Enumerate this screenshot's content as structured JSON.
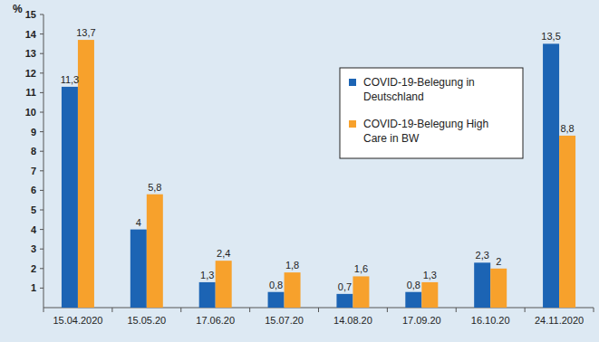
{
  "chart_data": {
    "type": "bar",
    "y_label": "%",
    "categories": [
      "15.04.2020",
      "15.05.20",
      "17.06.20",
      "15.07.20",
      "14.08.20",
      "17.09.20",
      "16.10.20",
      "24.11.2020"
    ],
    "series": [
      {
        "name": "COVID-19-Belegung in Deutschland",
        "color": "#1c64b4",
        "values": [
          11.3,
          4,
          1.3,
          0.8,
          0.7,
          0.8,
          2.3,
          13.5
        ],
        "value_labels": [
          "11,3",
          "4",
          "1,3",
          "0,8",
          "0,7",
          "0,8",
          "2,3",
          "13,5"
        ]
      },
      {
        "name": "COVID-19-Belegung High Care in BW",
        "color": "#f7a12c",
        "values": [
          13.7,
          5.8,
          2.4,
          1.8,
          1.6,
          1.3,
          2,
          8.8
        ],
        "value_labels": [
          "13,7",
          "5,8",
          "2,4",
          "1,8",
          "1,6",
          "1,3",
          "2",
          "8,8"
        ]
      }
    ],
    "ylim": [
      0,
      15
    ],
    "yticks": [
      1,
      2,
      3,
      4,
      5,
      6,
      7,
      8,
      9,
      10,
      11,
      12,
      13,
      14,
      15
    ],
    "grid": false,
    "legend": "upper right",
    "data_labels": true
  }
}
